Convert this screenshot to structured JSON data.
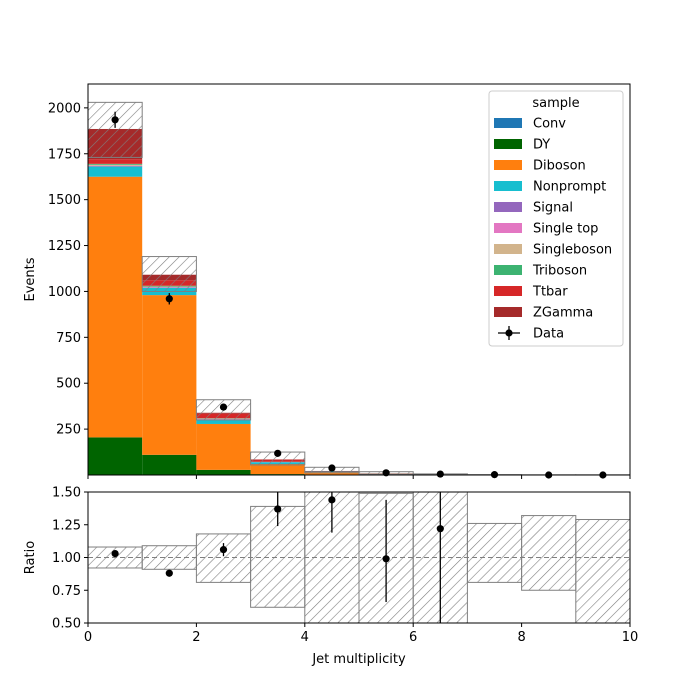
{
  "chart_data": [
    {
      "type": "bar",
      "stacked": true,
      "xlabel": "",
      "ylabel": "Events",
      "xlim": [
        0,
        10
      ],
      "ylim": [
        0,
        2130
      ],
      "bin_edges": [
        0,
        1,
        2,
        3,
        4,
        5,
        6,
        7,
        8,
        9,
        10
      ],
      "yticks": [
        250,
        500,
        750,
        1000,
        1250,
        1500,
        1750,
        2000
      ],
      "legend": {
        "title": "sample",
        "placement": "top-right",
        "entries": [
          "Conv",
          "DY",
          "Diboson",
          "Nonprompt",
          "Signal",
          "Single top",
          "Singleboson",
          "Triboson",
          "Ttbar",
          "ZGamma",
          "Data"
        ]
      },
      "series": [
        {
          "name": "Conv",
          "color": "#1f77b4",
          "values": [
            0,
            0,
            0,
            0,
            0,
            0,
            0,
            0,
            0,
            0
          ]
        },
        {
          "name": "DY",
          "color": "#006400",
          "values": [
            205,
            110,
            28,
            5,
            2,
            0,
            0,
            0,
            0,
            0
          ]
        },
        {
          "name": "Diboson",
          "color": "#ff7f0e",
          "values": [
            1420,
            870,
            250,
            55,
            14,
            7,
            2,
            0,
            0,
            0
          ]
        },
        {
          "name": "Nonprompt",
          "color": "#17becf",
          "values": [
            55,
            40,
            25,
            10,
            3,
            1,
            0,
            0,
            0,
            0
          ]
        },
        {
          "name": "Signal",
          "color": "#9467bd",
          "values": [
            3,
            2,
            1,
            0,
            0,
            0,
            0,
            0,
            0,
            0
          ]
        },
        {
          "name": "Single top",
          "color": "#e377c2",
          "values": [
            2,
            2,
            2,
            1,
            0,
            0,
            0,
            0,
            0,
            0
          ]
        },
        {
          "name": "Singleboson",
          "color": "#d2b48c",
          "values": [
            5,
            3,
            1,
            0,
            0,
            0,
            0,
            0,
            0,
            0
          ]
        },
        {
          "name": "Triboson",
          "color": "#3cb371",
          "values": [
            5,
            4,
            2,
            1,
            0,
            0,
            0,
            0,
            0,
            0
          ]
        },
        {
          "name": "Ttbar",
          "color": "#d62728",
          "values": [
            25,
            30,
            25,
            12,
            3,
            1,
            0,
            0,
            0,
            0
          ]
        },
        {
          "name": "ZGamma",
          "color": "#a52a2a",
          "values": [
            165,
            30,
            5,
            1,
            0,
            0,
            0,
            0,
            0,
            0
          ]
        }
      ],
      "uncertainty_band": {
        "low": [
          1730,
          1000,
          300,
          55,
          12,
          4,
          1,
          0,
          0,
          0
        ],
        "high": [
          2030,
          1190,
          410,
          125,
          42,
          18,
          6,
          2,
          1,
          1
        ]
      },
      "data_points": {
        "name": "Data",
        "x": [
          0.5,
          1.5,
          2.5,
          3.5,
          4.5,
          5.5,
          6.5,
          7.5,
          8.5,
          9.5
        ],
        "y": [
          1935,
          960,
          370,
          118,
          38,
          12,
          5,
          2,
          0,
          0
        ],
        "yerr": [
          44,
          31,
          19,
          11,
          6,
          3.5,
          2.2,
          1.4,
          0,
          0
        ]
      }
    },
    {
      "type": "scatter",
      "xlabel": "Jet multiplicity",
      "ylabel": "Ratio",
      "xlim": [
        0,
        10
      ],
      "ylim": [
        0.5,
        1.5
      ],
      "xticks": [
        0,
        2,
        4,
        6,
        8,
        10
      ],
      "yticks": [
        0.5,
        0.75,
        1.0,
        1.25,
        1.5
      ],
      "reference_line": 1.0,
      "uncertainty_band": {
        "low": [
          0.92,
          0.91,
          0.81,
          0.62,
          0.4,
          0.5,
          0.3,
          0.81,
          0.75,
          0.4
        ],
        "high": [
          1.08,
          1.09,
          1.18,
          1.39,
          1.6,
          1.49,
          1.6,
          1.26,
          1.32,
          1.29
        ]
      },
      "points": {
        "x": [
          0.5,
          1.5,
          2.5,
          3.5,
          4.5,
          5.5,
          6.5
        ],
        "y": [
          1.03,
          0.88,
          1.06,
          1.37,
          1.44,
          0.99,
          1.22
        ],
        "yerr_low": [
          0.02,
          0.02,
          0.05,
          0.13,
          0.25,
          0.33,
          1.0
        ],
        "yerr_high": [
          0.02,
          0.02,
          0.05,
          0.13,
          0.25,
          0.45,
          1.0
        ]
      }
    }
  ]
}
